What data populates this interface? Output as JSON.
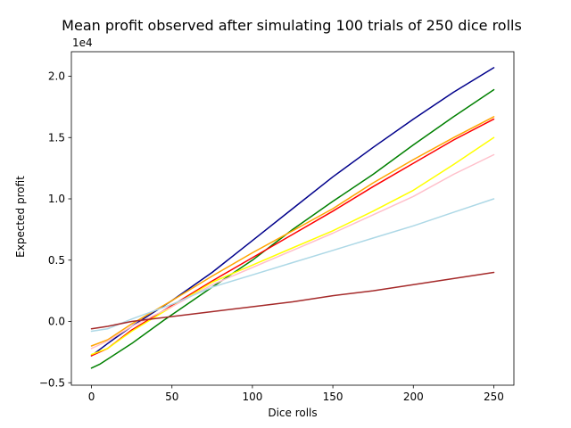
{
  "chart_data": {
    "type": "line",
    "title": "Mean profit observed after simulating 100 trials of 250 dice rolls",
    "xlabel": "Dice rolls",
    "ylabel": "Expected profit",
    "y_offset_label": "1e4",
    "xlim": [
      -12.5,
      262.5
    ],
    "ylim": [
      -0.52,
      2.2
    ],
    "x_ticks": [
      0,
      50,
      100,
      150,
      200,
      250
    ],
    "x_tick_labels": [
      "0",
      "50",
      "100",
      "150",
      "200",
      "250"
    ],
    "y_ticks": [
      -0.5,
      0.0,
      0.5,
      1.0,
      1.5,
      2.0
    ],
    "y_tick_labels": [
      "−0.5",
      "0.0",
      "0.5",
      "1.0",
      "1.5",
      "2.0"
    ],
    "grid": false,
    "legend": "none",
    "series": [
      {
        "color": "#00008b",
        "x": [
          0,
          10,
          25,
          50,
          75,
          100,
          125,
          150,
          175,
          200,
          225,
          250
        ],
        "y": [
          -0.28,
          -0.18,
          -0.04,
          0.17,
          0.4,
          0.66,
          0.92,
          1.18,
          1.42,
          1.65,
          1.87,
          2.07
        ]
      },
      {
        "color": "#008000",
        "x": [
          0,
          5,
          25,
          45,
          75,
          100,
          125,
          150,
          175,
          200,
          225,
          250
        ],
        "y": [
          -0.38,
          -0.35,
          -0.18,
          0.01,
          0.28,
          0.5,
          0.75,
          0.98,
          1.2,
          1.44,
          1.67,
          1.89
        ]
      },
      {
        "color": "#ffa500",
        "x": [
          0,
          10,
          25,
          50,
          75,
          100,
          125,
          150,
          175,
          200,
          225,
          250
        ],
        "y": [
          -0.2,
          -0.15,
          -0.02,
          0.17,
          0.37,
          0.56,
          0.74,
          0.92,
          1.13,
          1.32,
          1.5,
          1.67
        ]
      },
      {
        "color": "#ff0000",
        "x": [
          0,
          10,
          25,
          50,
          75,
          100,
          125,
          150,
          175,
          200,
          225,
          250
        ],
        "y": [
          -0.28,
          -0.22,
          -0.07,
          0.13,
          0.33,
          0.52,
          0.71,
          0.9,
          1.1,
          1.29,
          1.48,
          1.65
        ]
      },
      {
        "color": "#ffff00",
        "x": [
          0,
          10,
          25,
          50,
          75,
          100,
          125,
          150,
          175,
          200,
          225,
          250
        ],
        "y": [
          -0.27,
          -0.22,
          -0.08,
          0.12,
          0.32,
          0.46,
          0.6,
          0.74,
          0.9,
          1.07,
          1.28,
          1.5
        ]
      },
      {
        "color": "#ffc0cb",
        "x": [
          0,
          10,
          25,
          50,
          75,
          100,
          125,
          150,
          175,
          200,
          225,
          250
        ],
        "y": [
          -0.22,
          -0.16,
          -0.04,
          0.12,
          0.3,
          0.44,
          0.58,
          0.72,
          0.87,
          1.02,
          1.2,
          1.36
        ]
      },
      {
        "color": "#add8e6",
        "x": [
          0,
          10,
          25,
          50,
          75,
          100,
          125,
          150,
          175,
          200,
          225,
          250
        ],
        "y": [
          -0.08,
          -0.06,
          0.02,
          0.14,
          0.28,
          0.38,
          0.48,
          0.58,
          0.68,
          0.78,
          0.89,
          1.0
        ]
      },
      {
        "color": "#a52a2a",
        "x": [
          0,
          10,
          25,
          50,
          75,
          100,
          125,
          150,
          175,
          200,
          225,
          250
        ],
        "y": [
          -0.06,
          -0.04,
          0.0,
          0.04,
          0.08,
          0.12,
          0.16,
          0.21,
          0.25,
          0.3,
          0.35,
          0.4
        ]
      }
    ]
  }
}
